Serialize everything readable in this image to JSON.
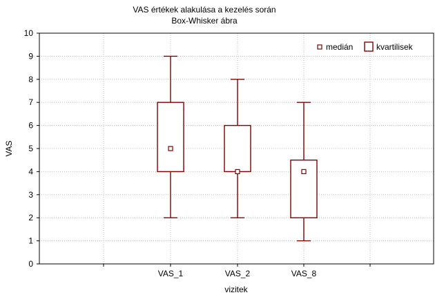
{
  "chart_data": {
    "type": "boxplot",
    "title": "VAS értékek alakulása a kezelés során",
    "subtitle": "Box-Whisker ábra",
    "xlabel": "vizitek",
    "ylabel": "VAS",
    "ylim": [
      0,
      10
    ],
    "yticks": [
      0,
      1,
      2,
      3,
      4,
      5,
      6,
      7,
      8,
      9,
      10
    ],
    "grid": true,
    "legend_position": "top-right",
    "legend": {
      "median_label": "medián",
      "quartile_label": "kvartilisek"
    },
    "categories": [
      "VAS_1",
      "VAS_2",
      "VAS_8"
    ],
    "series": [
      {
        "category": "VAS_1",
        "min": 2,
        "q1": 4,
        "median": 5,
        "q3": 7,
        "max": 9
      },
      {
        "category": "VAS_2",
        "min": 2,
        "q1": 4,
        "median": 4,
        "q3": 6,
        "max": 8
      },
      {
        "category": "VAS_8",
        "min": 1,
        "q1": 2,
        "median": 4,
        "q3": 4.5,
        "max": 7
      }
    ],
    "colors": {
      "box": "#800000",
      "grid": "#bdbdbd"
    }
  }
}
